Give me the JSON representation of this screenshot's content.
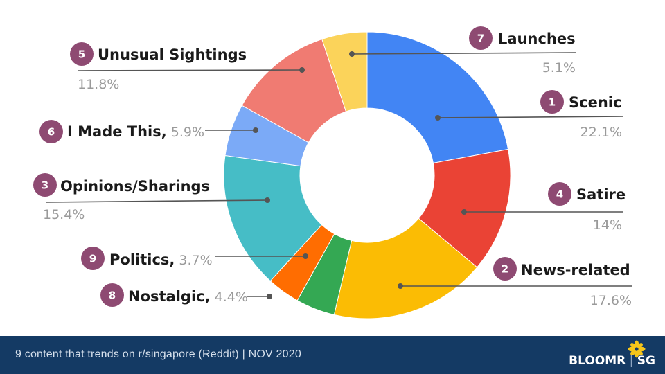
{
  "chart_data": {
    "type": "pie",
    "donut": true,
    "title": "",
    "slices": [
      {
        "rank": "7",
        "label": "Launches",
        "value": 5.1,
        "display": "5.1%",
        "color": "#fbd35a"
      },
      {
        "rank": "1",
        "label": "Scenic",
        "value": 22.1,
        "display": "22.1%",
        "color": "#4285f4"
      },
      {
        "rank": "4",
        "label": "Satire",
        "value": 14,
        "display": "14%",
        "color": "#ea4335"
      },
      {
        "rank": "2",
        "label": "News-related",
        "value": 17.6,
        "display": "17.6%",
        "color": "#fbbc04"
      },
      {
        "rank": "8",
        "label": "Nostalgic,",
        "value": 4.4,
        "display": "4.4%",
        "color": "#34a853"
      },
      {
        "rank": "9",
        "label": "Politics,",
        "value": 3.7,
        "display": "3.7%",
        "color": "#ff6d01"
      },
      {
        "rank": "3",
        "label": "Opinions/Sharings",
        "value": 15.4,
        "display": "15.4%",
        "color": "#46bdc6"
      },
      {
        "rank": "6",
        "label": "I Made This,",
        "value": 5.9,
        "display": "5.9%",
        "color": "#7baaf7"
      },
      {
        "rank": "5",
        "label": "Unusual Sightings",
        "value": 11.8,
        "display": "11.8%",
        "color": "#f07b72"
      }
    ],
    "order": [
      "Scenic",
      "Satire",
      "News-related",
      "Nostalgic,",
      "Politics,",
      "Opinions/Sharings",
      "I Made This,",
      "Unusual Sightings",
      "Launches"
    ],
    "badge_color": "#8e4a72"
  },
  "footer": {
    "caption": "9 content that trends on r/singapore (Reddit) | NOV 2020",
    "brand": "BLOOMR",
    "brand_suffix": "SG",
    "background": "#143a64"
  }
}
